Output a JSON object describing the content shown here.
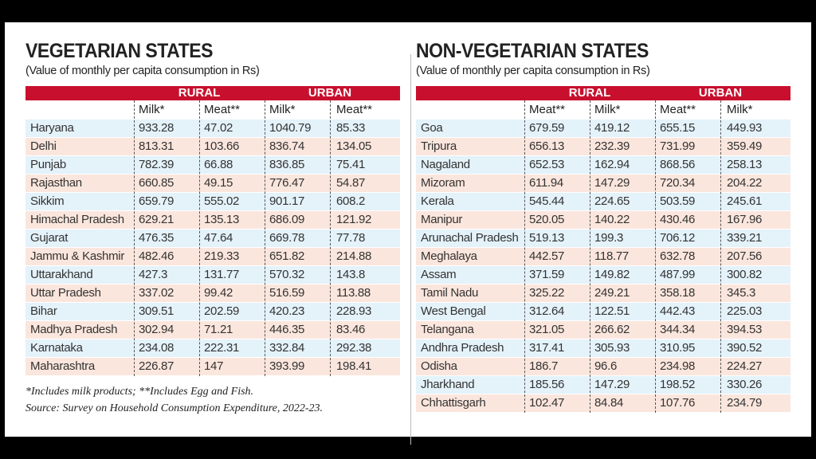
{
  "colors": {
    "header_red": "#c8102e",
    "row_blue": "#e4f2fa",
    "row_pink": "#fbe6dd"
  },
  "vegetarian": {
    "title": "VEGETARIAN STATES",
    "subtitle": "(Value of monthly per capita consumption in Rs)",
    "groups": [
      "RURAL",
      "URBAN"
    ],
    "columns": [
      "Milk*",
      "Meat**",
      "Milk*",
      "Meat**"
    ],
    "rows": [
      [
        "Haryana",
        "933.28",
        "47.02",
        "1040.79",
        "85.33"
      ],
      [
        "Delhi",
        "813.31",
        "103.66",
        "836.74",
        "134.05"
      ],
      [
        "Punjab",
        "782.39",
        "66.88",
        "836.85",
        "75.41"
      ],
      [
        "Rajasthan",
        "660.85",
        "49.15",
        "776.47",
        "54.87"
      ],
      [
        "Sikkim",
        "659.79",
        "555.02",
        "901.17",
        "608.2"
      ],
      [
        "Himachal Pradesh",
        "629.21",
        "135.13",
        "686.09",
        "121.92"
      ],
      [
        "Gujarat",
        "476.35",
        "47.64",
        "669.78",
        "77.78"
      ],
      [
        "Jammu & Kashmir",
        "482.46",
        "219.33",
        "651.82",
        "214.88"
      ],
      [
        "Uttarakhand",
        "427.3",
        "131.77",
        "570.32",
        "143.8"
      ],
      [
        "Uttar Pradesh",
        "337.02",
        "99.42",
        "516.59",
        "113.88"
      ],
      [
        "Bihar",
        "309.51",
        "202.59",
        "420.23",
        "228.93"
      ],
      [
        "Madhya Pradesh",
        "302.94",
        "71.21",
        "446.35",
        "83.46"
      ],
      [
        "Karnataka",
        "234.08",
        "222.31",
        "332.84",
        "292.38"
      ],
      [
        "Maharashtra",
        "226.87",
        "147",
        "393.99",
        "198.41"
      ]
    ],
    "footnote": "*Includes milk products; **Includes Egg and Fish.",
    "source": "Source: Survey on Household Consumption Expenditure, 2022-23."
  },
  "non_vegetarian": {
    "title": "NON-VEGETARIAN STATES",
    "subtitle": "(Value of monthly per capita consumption in Rs)",
    "groups": [
      "RURAL",
      "URBAN"
    ],
    "columns": [
      "Meat**",
      "Milk*",
      "Meat**",
      "Milk*"
    ],
    "rows": [
      [
        "Goa",
        "679.59",
        "419.12",
        "655.15",
        "449.93"
      ],
      [
        "Tripura",
        "656.13",
        "232.39",
        "731.99",
        "359.49"
      ],
      [
        "Nagaland",
        "652.53",
        "162.94",
        "868.56",
        "258.13"
      ],
      [
        "Mizoram",
        "611.94",
        "147.29",
        "720.34",
        "204.22"
      ],
      [
        "Kerala",
        "545.44",
        "224.65",
        "503.59",
        "245.61"
      ],
      [
        "Manipur",
        "520.05",
        "140.22",
        "430.46",
        "167.96"
      ],
      [
        "Arunachal Pradesh",
        "519.13",
        "199.3",
        "706.12",
        "339.21"
      ],
      [
        "Meghalaya",
        "442.57",
        "118.77",
        "632.78",
        "207.56"
      ],
      [
        "Assam",
        "371.59",
        "149.82",
        "487.99",
        "300.82"
      ],
      [
        "Tamil Nadu",
        "325.22",
        "249.21",
        "358.18",
        "345.3"
      ],
      [
        "West Bengal",
        "312.64",
        "122.51",
        "442.43",
        "225.03"
      ],
      [
        "Telangana",
        "321.05",
        "266.62",
        "344.34",
        "394.53"
      ],
      [
        "Andhra Pradesh",
        "317.41",
        "305.93",
        "310.95",
        "390.52"
      ],
      [
        "Odisha",
        "186.7",
        "96.6",
        "234.98",
        "224.27"
      ],
      [
        "Jharkhand",
        "185.56",
        "147.29",
        "198.52",
        "330.26"
      ],
      [
        "Chhattisgarh",
        "102.47",
        "84.84",
        "107.76",
        "234.79"
      ]
    ]
  }
}
